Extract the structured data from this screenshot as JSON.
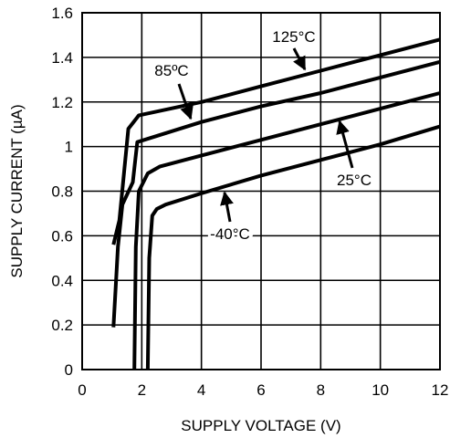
{
  "chart_data": {
    "type": "line",
    "title": "",
    "xlabel": "SUPPLY VOLTAGE (V)",
    "ylabel": "SUPPLY CURRENT (µA)",
    "xlim": [
      0,
      12
    ],
    "ylim": [
      0,
      1.6
    ],
    "x_ticks": [
      "0",
      "2",
      "4",
      "6",
      "8",
      "10",
      "12"
    ],
    "y_ticks": [
      "0",
      "0.2",
      "0.4",
      "0.6",
      "0.8",
      "1",
      "1.2",
      "1.4",
      "1.6"
    ],
    "grid": true,
    "legend": "none",
    "series": [
      {
        "name": "125°C",
        "x": [
          1.05,
          1.25,
          1.55,
          1.9,
          4,
          6,
          8,
          10,
          12
        ],
        "y": [
          0.56,
          0.67,
          1.08,
          1.14,
          1.2,
          1.27,
          1.34,
          1.41,
          1.48
        ]
      },
      {
        "name": "85ºC",
        "x": [
          1.05,
          1.2,
          1.35,
          1.7,
          1.85,
          4,
          6,
          8,
          10,
          12
        ],
        "y": [
          0.19,
          0.55,
          0.74,
          0.84,
          1.02,
          1.11,
          1.18,
          1.24,
          1.31,
          1.38
        ]
      },
      {
        "name": "25°C",
        "x": [
          1.75,
          1.8,
          1.9,
          2.2,
          2.6,
          4,
          6,
          8,
          10,
          12
        ],
        "y": [
          0,
          0.55,
          0.8,
          0.88,
          0.91,
          0.96,
          1.03,
          1.1,
          1.17,
          1.24
        ]
      },
      {
        "name": "-40°C",
        "x": [
          2.2,
          2.25,
          2.35,
          2.5,
          2.8,
          4,
          6,
          8,
          10,
          12
        ],
        "y": [
          0,
          0.5,
          0.69,
          0.72,
          0.74,
          0.79,
          0.87,
          0.94,
          1.01,
          1.09
        ]
      }
    ],
    "annotations": [
      {
        "text": "125°C",
        "series": "125°C"
      },
      {
        "text": "85ºC",
        "series": "85ºC"
      },
      {
        "text": "25°C",
        "series": "25°C"
      },
      {
        "text": "-40°C",
        "series": "-40°C"
      }
    ]
  }
}
